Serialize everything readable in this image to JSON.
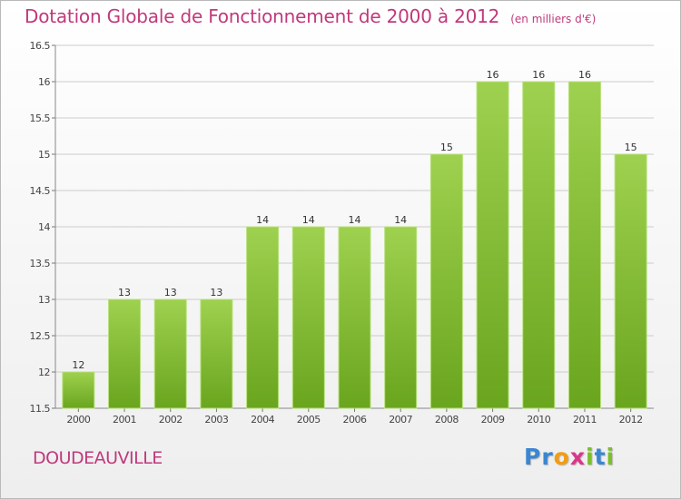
{
  "title": "Dotation Globale de Fonctionnement de 2000 à 2012",
  "subtitle": "(en milliers d'€)",
  "commune": "DOUDEAUVILLE",
  "logo": {
    "letters": [
      "P",
      "r",
      "o",
      "x",
      "i",
      "t",
      "i"
    ],
    "colors": [
      "#3a86d2",
      "#3a86d2",
      "#f39c12",
      "#d9368b",
      "#7bbf2a",
      "#3a86d2",
      "#7bbf2a"
    ]
  },
  "colors": {
    "bar_light": "#9ed14f",
    "bar_dark": "#6aa51e",
    "title": "#c0397c",
    "grid": "#cccccc"
  },
  "chart_data": {
    "type": "bar",
    "title": "Dotation Globale de Fonctionnement de 2000 à 2012",
    "subtitle": "(en milliers d'€)",
    "categories": [
      "2000",
      "2001",
      "2002",
      "2003",
      "2004",
      "2005",
      "2006",
      "2007",
      "2008",
      "2009",
      "2010",
      "2011",
      "2012"
    ],
    "values": [
      12,
      13,
      13,
      13,
      14,
      14,
      14,
      14,
      15,
      16,
      16,
      16,
      15
    ],
    "ylim": [
      11.5,
      16.5
    ],
    "yticks": [
      "11.5",
      "12",
      "12.5",
      "13",
      "13.5",
      "14",
      "14.5",
      "15",
      "15.5",
      "16",
      "16.5"
    ],
    "grid": true,
    "xlabel": "",
    "ylabel": ""
  }
}
